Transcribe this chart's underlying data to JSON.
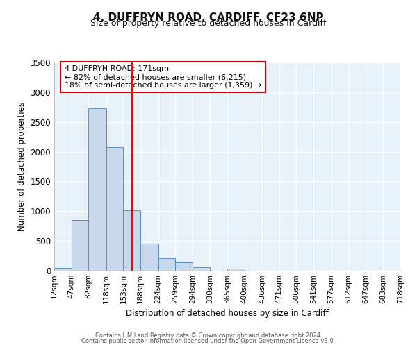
{
  "title": "4, DUFFRYN ROAD, CARDIFF, CF23 6NP",
  "subtitle": "Size of property relative to detached houses in Cardiff",
  "xlabel": "Distribution of detached houses by size in Cardiff",
  "ylabel": "Number of detached properties",
  "bar_color": "#c8d8ec",
  "bar_edge_color": "#5b8ec4",
  "background_color": "#ffffff",
  "plot_bg_color": "#e8f0f8",
  "grid_color": "#ffffff",
  "red_line_x": 171,
  "annotation_title": "4 DUFFRYN ROAD: 171sqm",
  "annotation_line1": "← 82% of detached houses are smaller (6,215)",
  "annotation_line2": "18% of semi-detached houses are larger (1,359) →",
  "annotation_box_color": "#ffffff",
  "annotation_box_edge_color": "#cc0000",
  "footer_line1": "Contains HM Land Registry data © Crown copyright and database right 2024.",
  "footer_line2": "Contains public sector information licensed under the Open Government Licence v3.0.",
  "bin_edges": [
    12,
    47,
    82,
    118,
    153,
    188,
    224,
    259,
    294,
    330,
    365,
    400,
    436,
    471,
    506,
    541,
    577,
    612,
    647,
    683,
    718
  ],
  "bin_counts": [
    50,
    850,
    2730,
    2080,
    1010,
    455,
    205,
    140,
    55,
    0,
    30,
    0,
    0,
    0,
    0,
    0,
    0,
    0,
    0,
    0
  ],
  "ylim": [
    0,
    3500
  ],
  "yticks": [
    0,
    500,
    1000,
    1500,
    2000,
    2500,
    3000,
    3500
  ]
}
